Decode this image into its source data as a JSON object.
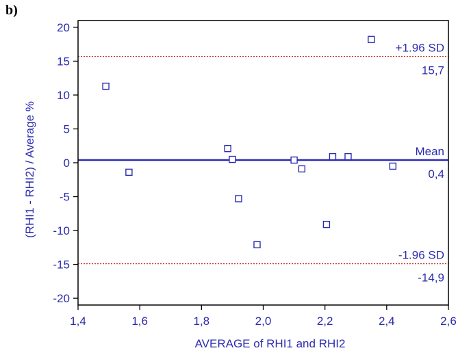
{
  "panel_label": "b)",
  "chart_data": {
    "type": "scatter",
    "title": "",
    "xlabel": "AVERAGE of RHI1 and RHI2",
    "ylabel": "(RHI1 - RHI2) / Average %",
    "xlim": [
      1.4,
      2.6
    ],
    "ylim": [
      -21,
      21
    ],
    "x_ticks": [
      1.4,
      1.6,
      1.8,
      2.0,
      2.2,
      2.4,
      2.6
    ],
    "x_tick_labels": [
      "1,4",
      "1,6",
      "1,8",
      "2,0",
      "2,2",
      "2,4",
      "2,6"
    ],
    "y_ticks": [
      20,
      15,
      10,
      5,
      0,
      -5,
      -10,
      -15,
      -20
    ],
    "y_tick_labels": [
      "20",
      "15",
      "10",
      "5",
      "0",
      "-5",
      "-10",
      "-15",
      "-20"
    ],
    "grid": false,
    "points": [
      {
        "x": 1.49,
        "y": 11.3
      },
      {
        "x": 1.565,
        "y": -1.4
      },
      {
        "x": 1.885,
        "y": 2.1
      },
      {
        "x": 1.9,
        "y": 0.5
      },
      {
        "x": 1.92,
        "y": -5.3
      },
      {
        "x": 1.98,
        "y": -12.1
      },
      {
        "x": 2.1,
        "y": 0.4
      },
      {
        "x": 2.125,
        "y": -0.9
      },
      {
        "x": 2.205,
        "y": -9.1
      },
      {
        "x": 2.225,
        "y": 0.9
      },
      {
        "x": 2.275,
        "y": 0.9
      },
      {
        "x": 2.35,
        "y": 18.2
      },
      {
        "x": 2.42,
        "y": -0.5
      }
    ],
    "reference_lines": [
      {
        "name": "+1.96 SD",
        "value": 15.7,
        "value_label": "15,7",
        "style": "dotted",
        "color": "#c0392b"
      },
      {
        "name": "Mean",
        "value": 0.4,
        "value_label": "0,4",
        "style": "solid",
        "color": "#2b2bb0"
      },
      {
        "name": "-1.96 SD",
        "value": -14.9,
        "value_label": "-14,9",
        "style": "dotted",
        "color": "#c0392b"
      }
    ],
    "colors": {
      "axis": "#000000",
      "text": "#2b2bb0",
      "marker": "#2b2bb0"
    }
  }
}
